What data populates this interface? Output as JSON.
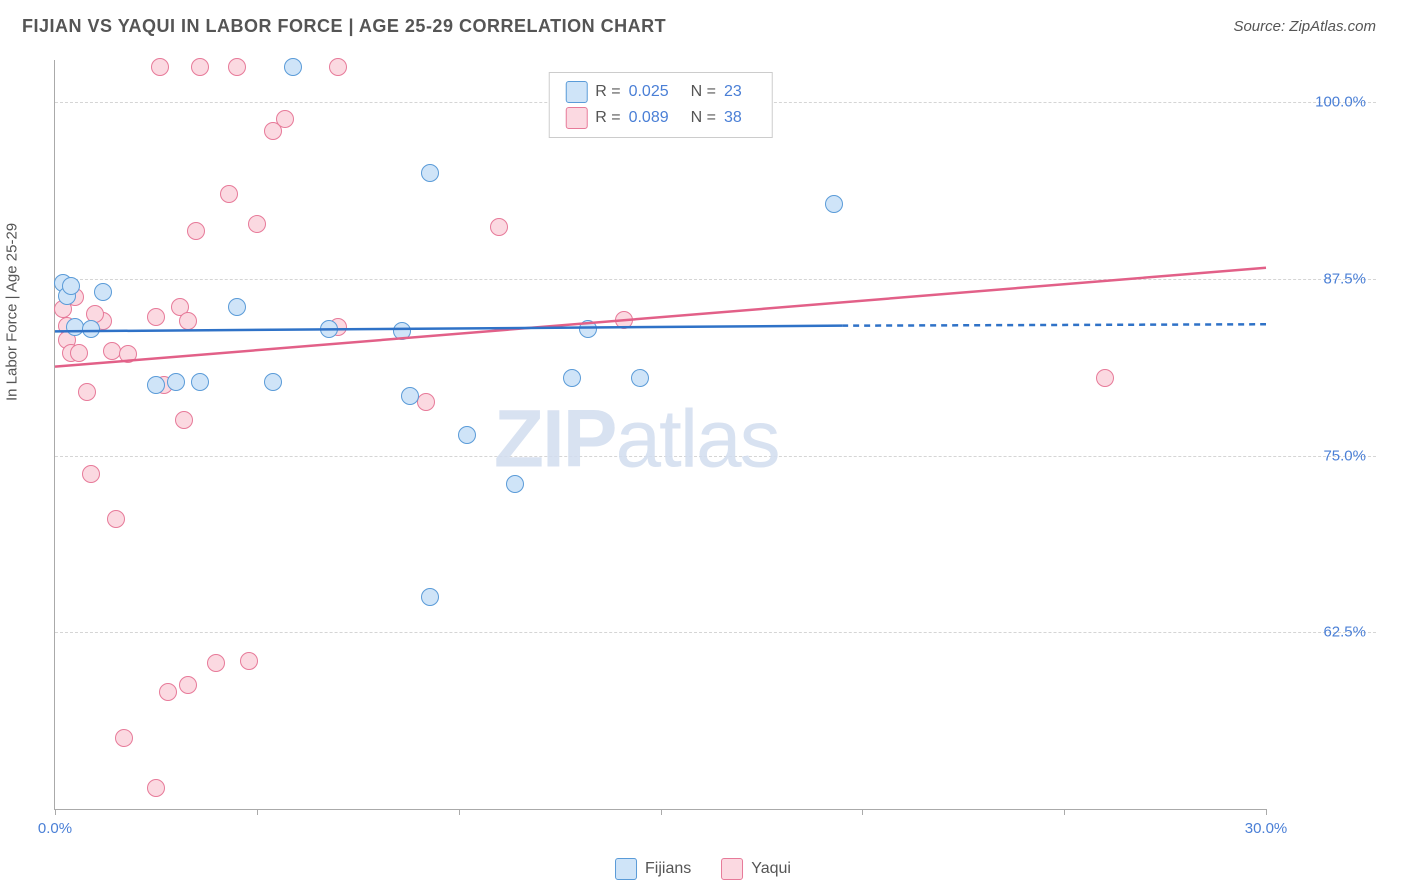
{
  "header": {
    "title": "FIJIAN VS YAQUI IN LABOR FORCE | AGE 25-29 CORRELATION CHART",
    "source": "Source: ZipAtlas.com"
  },
  "chart": {
    "type": "scatter",
    "y_axis_label": "In Labor Force | Age 25-29",
    "xlim": [
      0,
      30
    ],
    "ylim": [
      50,
      103
    ],
    "x_ticks": [
      0,
      5,
      10,
      15,
      20,
      25,
      30
    ],
    "x_tick_labels": {
      "0": "0.0%",
      "30": "30.0%"
    },
    "y_ticks": [
      62.5,
      75.0,
      87.5,
      100.0
    ],
    "y_tick_labels": [
      "62.5%",
      "75.0%",
      "87.5%",
      "100.0%"
    ],
    "grid_color": "#d5d5d5",
    "axis_color": "#aaaaaa",
    "background_color": "#ffffff",
    "marker_radius": 9,
    "marker_stroke_width": 1.5,
    "line_width": 2.5,
    "series": {
      "fijians": {
        "label": "Fijians",
        "fill": "#cfe4f8",
        "stroke": "#5a9bd8",
        "line_color": "#2f72c7",
        "R": "0.025",
        "N": "23",
        "trend": {
          "x1": 0,
          "y1": 83.8,
          "x2": 19.5,
          "y2": 84.2,
          "dash_to_x": 30,
          "dash_to_y": 84.3
        },
        "points": [
          [
            0.2,
            87.2
          ],
          [
            0.3,
            86.3
          ],
          [
            1.2,
            86.6
          ],
          [
            0.5,
            84.1
          ],
          [
            0.9,
            84.0
          ],
          [
            4.5,
            85.5
          ],
          [
            6.8,
            84.0
          ],
          [
            8.6,
            83.8
          ],
          [
            5.9,
            102.5
          ],
          [
            9.3,
            95.0
          ],
          [
            3.0,
            80.2
          ],
          [
            3.6,
            80.2
          ],
          [
            5.4,
            80.2
          ],
          [
            8.8,
            79.2
          ],
          [
            10.2,
            76.5
          ],
          [
            11.4,
            73.0
          ],
          [
            12.8,
            80.5
          ],
          [
            13.2,
            84.0
          ],
          [
            14.5,
            80.5
          ],
          [
            9.3,
            65.0
          ],
          [
            19.3,
            92.8
          ],
          [
            0.4,
            87.0
          ],
          [
            2.5,
            80.0
          ]
        ]
      },
      "yaqui": {
        "label": "Yaqui",
        "fill": "#fbd9e1",
        "stroke": "#e77a99",
        "line_color": "#e26088",
        "R": "0.089",
        "N": "38",
        "trend": {
          "x1": 0,
          "y1": 81.3,
          "x2": 30,
          "y2": 88.3
        },
        "points": [
          [
            0.2,
            85.4
          ],
          [
            0.3,
            84.2
          ],
          [
            0.3,
            83.2
          ],
          [
            0.4,
            82.3
          ],
          [
            0.6,
            82.3
          ],
          [
            0.8,
            79.5
          ],
          [
            0.9,
            73.7
          ],
          [
            1.2,
            84.5
          ],
          [
            1.4,
            82.4
          ],
          [
            1.5,
            70.5
          ],
          [
            1.7,
            55.0
          ],
          [
            2.5,
            84.8
          ],
          [
            2.6,
            102.5
          ],
          [
            2.7,
            80.0
          ],
          [
            2.8,
            58.3
          ],
          [
            3.1,
            85.5
          ],
          [
            3.2,
            77.5
          ],
          [
            3.3,
            58.8
          ],
          [
            3.5,
            90.9
          ],
          [
            3.6,
            102.5
          ],
          [
            4.0,
            60.3
          ],
          [
            4.3,
            93.5
          ],
          [
            4.5,
            102.5
          ],
          [
            4.8,
            60.5
          ],
          [
            5.0,
            91.4
          ],
          [
            5.4,
            98.0
          ],
          [
            5.7,
            98.8
          ],
          [
            7.0,
            102.5
          ],
          [
            7.0,
            84.1
          ],
          [
            9.2,
            78.8
          ],
          [
            11.0,
            91.2
          ],
          [
            14.1,
            84.6
          ],
          [
            26.0,
            80.5
          ],
          [
            0.5,
            86.2
          ],
          [
            1.0,
            85.0
          ],
          [
            2.5,
            51.5
          ],
          [
            3.3,
            84.5
          ],
          [
            1.8,
            82.2
          ]
        ]
      }
    },
    "watermark": {
      "zip": "ZIP",
      "atlas": "atlas"
    }
  },
  "legend_bottom": {
    "fijians": "Fijians",
    "yaqui": "Yaqui"
  }
}
